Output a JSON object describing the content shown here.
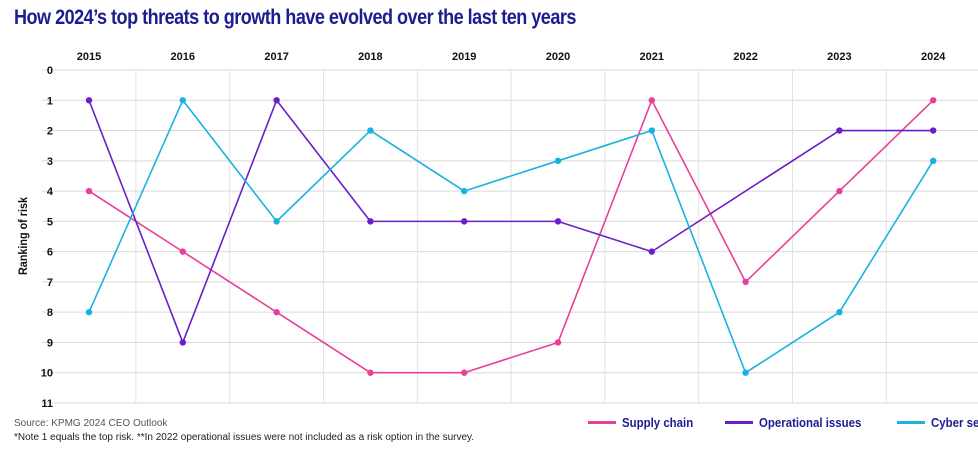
{
  "title": "How 2024’s top threats to growth have evolved over the last ten years",
  "source": "Source: KPMG 2024 CEO Outlook",
  "note": "*Note 1 equals the top risk.  **In 2022 operational issues were not included as a risk option in the survey.",
  "chart_data": {
    "type": "line",
    "title": "How 2024’s top threats to growth have evolved over the last ten years",
    "ylabel": "Ranking of risk",
    "xlabel": "",
    "x": [
      "2015",
      "2016",
      "2017",
      "2018",
      "2019",
      "2020",
      "2021",
      "2022",
      "2023",
      "2024"
    ],
    "y_ticks": [
      0,
      1,
      2,
      3,
      4,
      5,
      6,
      7,
      8,
      9,
      10,
      11
    ],
    "ylim": [
      0,
      11
    ],
    "y_inverted": true,
    "x_axis_position": "top",
    "grid": true,
    "legend_position": "bottom-right",
    "series": [
      {
        "name": "Supply chain",
        "color": "#e8409a",
        "points": [
          [
            "2015",
            4
          ],
          [
            "2016",
            6
          ],
          [
            "2017",
            8
          ],
          [
            "2018",
            10
          ],
          [
            "2019",
            10
          ],
          [
            "2020",
            9
          ],
          [
            "2021",
            1
          ],
          [
            "2022",
            7
          ],
          [
            "2023",
            4
          ],
          [
            "2024",
            1
          ]
        ]
      },
      {
        "name": "Operational issues",
        "color": "#6a1fc8",
        "points": [
          [
            "2015",
            1
          ],
          [
            "2016",
            9
          ],
          [
            "2017",
            1
          ],
          [
            "2018",
            5
          ],
          [
            "2019",
            5
          ],
          [
            "2020",
            5
          ],
          [
            "2021",
            6
          ],
          [
            "2023",
            2
          ],
          [
            "2024",
            2
          ]
        ]
      },
      {
        "name": "Cyber security",
        "color": "#19b2e0",
        "points": [
          [
            "2015",
            8
          ],
          [
            "2016",
            1
          ],
          [
            "2017",
            5
          ],
          [
            "2018",
            2
          ],
          [
            "2019",
            4
          ],
          [
            "2020",
            3
          ],
          [
            "2021",
            2
          ],
          [
            "2022",
            10
          ],
          [
            "2023",
            8
          ],
          [
            "2024",
            3
          ]
        ]
      }
    ]
  }
}
